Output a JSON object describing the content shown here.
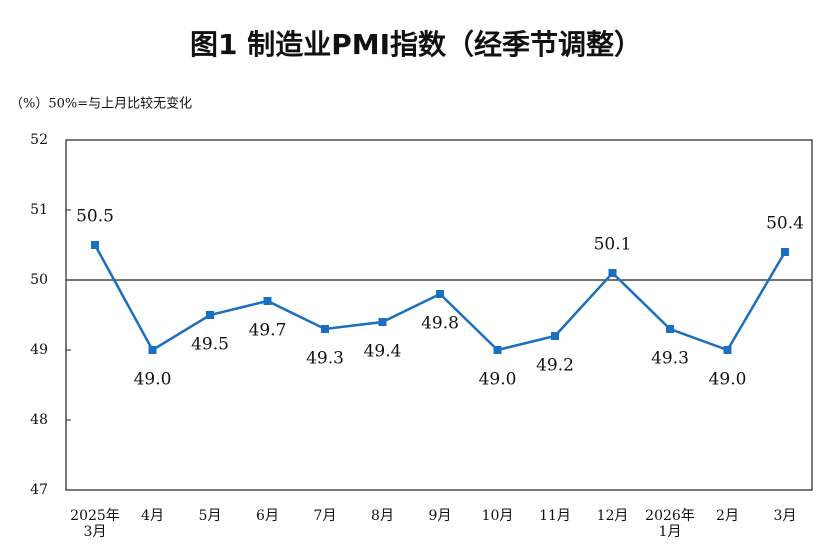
{
  "chart_data": {
    "type": "line",
    "title": "图1  制造业PMI指数（经季节调整）",
    "subtitle": "（%）50%=与上月比较无变化",
    "categories": [
      "2025年\n3月",
      "4月",
      "5月",
      "6月",
      "7月",
      "8月",
      "9月",
      "10月",
      "11月",
      "12月",
      "2026年\n1月",
      "2月",
      "3月"
    ],
    "values": [
      50.5,
      49.0,
      49.5,
      49.7,
      49.3,
      49.4,
      49.8,
      49.0,
      49.2,
      50.1,
      49.3,
      49.0,
      50.4
    ],
    "value_labels": [
      "50.5",
      "49.0",
      "49.5",
      "49.7",
      "49.3",
      "49.4",
      "49.8",
      "49.0",
      "49.2",
      "50.1",
      "49.3",
      "49.0",
      "50.4"
    ],
    "color": "#1a6fc0",
    "ylim": [
      47,
      52
    ],
    "yticks": [
      47,
      48,
      49,
      50,
      51,
      52
    ],
    "reference_line": 50
  }
}
